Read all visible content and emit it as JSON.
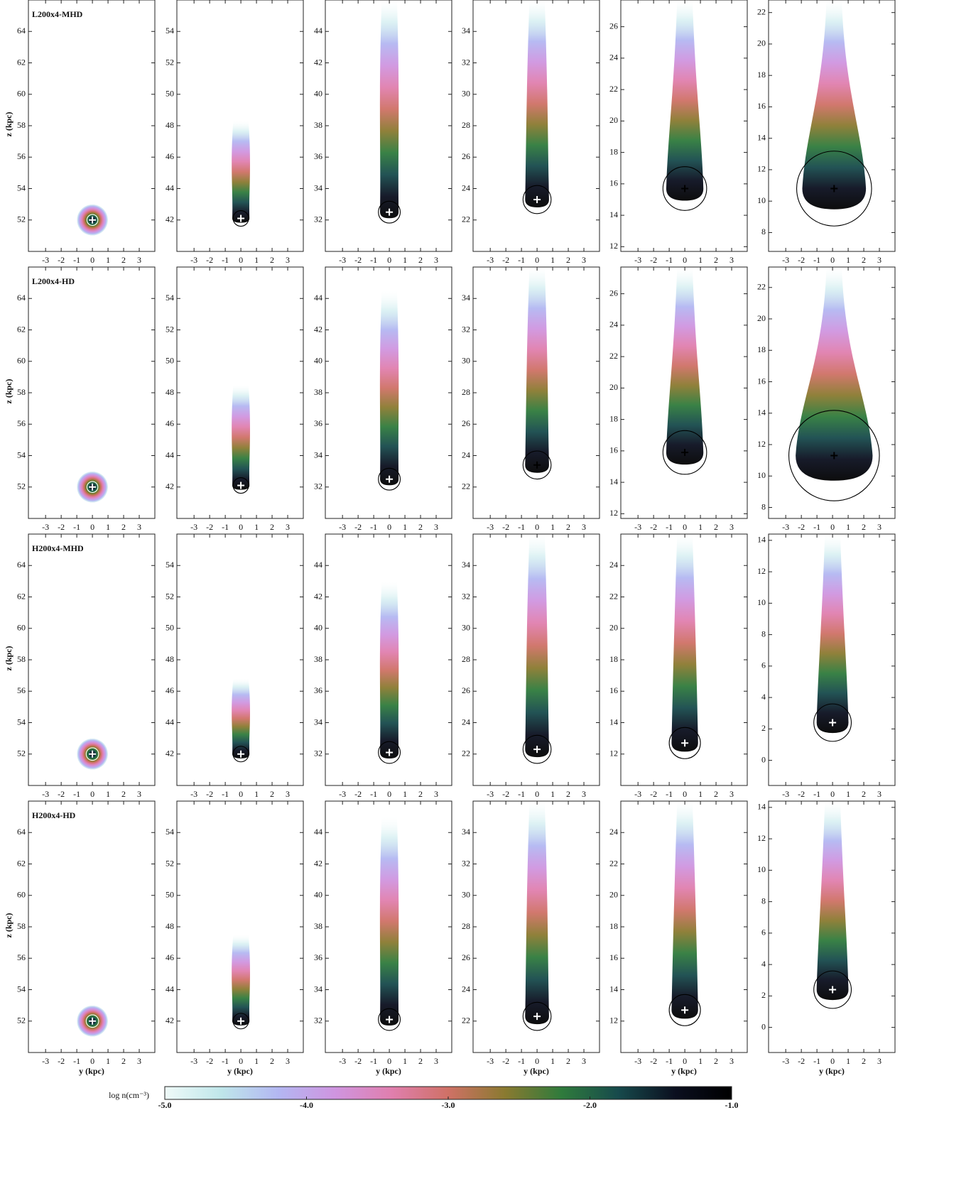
{
  "chart_data": {
    "type": "image-grid",
    "xlim": [
      -4.1,
      4.0
    ],
    "xticks": [
      -3,
      -2,
      -1,
      0,
      1,
      2,
      3
    ],
    "xlabel": "y (kpc)",
    "ylabel": "z (kpc)",
    "colorbar": {
      "label": "log n(cm⁻³)",
      "lim": [
        -5,
        -1
      ],
      "ticks": [
        {
          "value": -5,
          "label": "-5.0"
        },
        {
          "value": -4,
          "label": "-4.0"
        },
        {
          "value": -3,
          "label": "-3.0"
        },
        {
          "value": -2,
          "label": "-2.0"
        },
        {
          "value": -1,
          "label": "-1.0"
        }
      ],
      "colormap": [
        "#effaf8",
        "#bfe6ea",
        "#b3b7f2",
        "#cf95e0",
        "#e07fae",
        "#cf7166",
        "#8a7a30",
        "#2f7b3c",
        "#174a4c",
        "#0b0f1f",
        "#000000"
      ]
    },
    "rows": [
      {
        "label": "L200x4-MHD",
        "panels": [
          {
            "ylim": [
              50,
              66
            ],
            "yticks": [
              52,
              54,
              56,
              58,
              60,
              62,
              64
            ],
            "center_y": 0,
            "center_z": 52,
            "circle_r": 0.35,
            "tail_top": 52.5,
            "marker": "#ffffff"
          },
          {
            "ylim": [
              40,
              56
            ],
            "yticks": [
              42,
              44,
              46,
              48,
              50,
              52,
              54
            ],
            "center_y": 0,
            "center_z": 42.1,
            "circle_r": 0.5,
            "tail_top": 48.3,
            "marker": "#ffffff"
          },
          {
            "ylim": [
              30,
              46
            ],
            "yticks": [
              32,
              34,
              36,
              38,
              40,
              42,
              44
            ],
            "center_y": 0,
            "center_z": 32.5,
            "circle_r": 0.7,
            "tail_top": 46,
            "marker": "#ffffff"
          },
          {
            "ylim": [
              20,
              36
            ],
            "yticks": [
              22,
              24,
              26,
              28,
              30,
              32,
              34
            ],
            "center_y": 0,
            "center_z": 23.3,
            "circle_r": 0.9,
            "tail_top": 36,
            "marker": "#ffffff"
          },
          {
            "ylim": [
              11.7,
              27.7
            ],
            "yticks": [
              12,
              14,
              16,
              18,
              20,
              22,
              24,
              26
            ],
            "center_y": 0,
            "center_z": 15.7,
            "circle_r": 1.4,
            "tail_top": 27.7,
            "marker": "#000000"
          },
          {
            "ylim": [
              6.8,
              22.8
            ],
            "yticks": [
              8,
              10,
              12,
              14,
              16,
              18,
              20,
              22
            ],
            "center_y": 0.1,
            "center_z": 10.8,
            "circle_r": 2.4,
            "tail_top": 22.8,
            "marker": "#000000"
          }
        ]
      },
      {
        "label": "L200x4-HD",
        "panels": [
          {
            "ylim": [
              50,
              66
            ],
            "yticks": [
              52,
              54,
              56,
              58,
              60,
              62,
              64
            ],
            "center_y": 0,
            "center_z": 52,
            "circle_r": 0.35,
            "tail_top": 52.5,
            "marker": "#ffffff"
          },
          {
            "ylim": [
              40,
              56
            ],
            "yticks": [
              42,
              44,
              46,
              48,
              50,
              52,
              54
            ],
            "center_y": 0,
            "center_z": 42.1,
            "circle_r": 0.5,
            "tail_top": 48.5,
            "marker": "#ffffff"
          },
          {
            "ylim": [
              30,
              46
            ],
            "yticks": [
              32,
              34,
              36,
              38,
              40,
              42,
              44
            ],
            "center_y": 0,
            "center_z": 32.5,
            "circle_r": 0.7,
            "tail_top": 44.5,
            "marker": "#ffffff"
          },
          {
            "ylim": [
              20,
              36
            ],
            "yticks": [
              22,
              24,
              26,
              28,
              30,
              32,
              34
            ],
            "center_y": 0,
            "center_z": 23.4,
            "circle_r": 0.9,
            "tail_top": 36,
            "marker": "#000000"
          },
          {
            "ylim": [
              11.7,
              27.7
            ],
            "yticks": [
              12,
              14,
              16,
              18,
              20,
              22,
              24,
              26
            ],
            "center_y": 0,
            "center_z": 15.9,
            "circle_r": 1.4,
            "tail_top": 27.7,
            "marker": "#000000"
          },
          {
            "ylim": [
              7.3,
              23.3
            ],
            "yticks": [
              8,
              10,
              12,
              14,
              16,
              18,
              20,
              22
            ],
            "center_y": 0.1,
            "center_z": 11.3,
            "circle_r": 2.9,
            "tail_top": 23.3,
            "marker": "#000000"
          }
        ]
      },
      {
        "label": "H200x4-MHD",
        "panels": [
          {
            "ylim": [
              50,
              66
            ],
            "yticks": [
              52,
              54,
              56,
              58,
              60,
              62,
              64
            ],
            "center_y": 0,
            "center_z": 52,
            "circle_r": 0.4,
            "tail_top": 52.5,
            "marker": "#ffffff"
          },
          {
            "ylim": [
              40,
              56
            ],
            "yticks": [
              42,
              44,
              46,
              48,
              50,
              52,
              54
            ],
            "center_y": 0,
            "center_z": 42,
            "circle_r": 0.5,
            "tail_top": 46.8,
            "marker": "#ffffff"
          },
          {
            "ylim": [
              30,
              46
            ],
            "yticks": [
              32,
              34,
              36,
              38,
              40,
              42,
              44
            ],
            "center_y": 0,
            "center_z": 32.1,
            "circle_r": 0.7,
            "tail_top": 43,
            "marker": "#ffffff"
          },
          {
            "ylim": [
              20,
              36
            ],
            "yticks": [
              22,
              24,
              26,
              28,
              30,
              32,
              34
            ],
            "center_y": 0,
            "center_z": 22.3,
            "circle_r": 0.9,
            "tail_top": 36,
            "marker": "#ffffff"
          },
          {
            "ylim": [
              10,
              26
            ],
            "yticks": [
              12,
              14,
              16,
              18,
              20,
              22,
              24
            ],
            "center_y": 0,
            "center_z": 12.7,
            "circle_r": 1.0,
            "tail_top": 26,
            "marker": "#ffffff"
          },
          {
            "ylim": [
              -1.6,
              14.4
            ],
            "yticks": [
              0,
              2,
              4,
              6,
              8,
              10,
              12,
              14
            ],
            "center_y": 0,
            "center_z": 2.4,
            "circle_r": 1.2,
            "tail_top": 14.4,
            "marker": "#ffffff"
          }
        ]
      },
      {
        "label": "H200x4-HD",
        "panels": [
          {
            "ylim": [
              50,
              66
            ],
            "yticks": [
              52,
              54,
              56,
              58,
              60,
              62,
              64
            ],
            "center_y": 0,
            "center_z": 52,
            "circle_r": 0.4,
            "tail_top": 52.5,
            "marker": "#ffffff"
          },
          {
            "ylim": [
              40,
              56
            ],
            "yticks": [
              42,
              44,
              46,
              48,
              50,
              52,
              54
            ],
            "center_y": 0,
            "center_z": 42,
            "circle_r": 0.5,
            "tail_top": 47.5,
            "marker": "#ffffff"
          },
          {
            "ylim": [
              30,
              46
            ],
            "yticks": [
              32,
              34,
              36,
              38,
              40,
              42,
              44
            ],
            "center_y": 0,
            "center_z": 32.1,
            "circle_r": 0.7,
            "tail_top": 45,
            "marker": "#ffffff"
          },
          {
            "ylim": [
              20,
              36
            ],
            "yticks": [
              22,
              24,
              26,
              28,
              30,
              32,
              34
            ],
            "center_y": 0,
            "center_z": 22.3,
            "circle_r": 0.9,
            "tail_top": 36,
            "marker": "#ffffff"
          },
          {
            "ylim": [
              10,
              26
            ],
            "yticks": [
              12,
              14,
              16,
              18,
              20,
              22,
              24
            ],
            "center_y": 0,
            "center_z": 12.7,
            "circle_r": 1.0,
            "tail_top": 26,
            "marker": "#ffffff"
          },
          {
            "ylim": [
              -1.6,
              14.4
            ],
            "yticks": [
              0,
              2,
              4,
              6,
              8,
              10,
              12,
              14
            ],
            "center_y": 0,
            "center_z": 2.4,
            "circle_r": 1.2,
            "tail_top": 14.4,
            "marker": "#ffffff"
          }
        ]
      }
    ]
  }
}
